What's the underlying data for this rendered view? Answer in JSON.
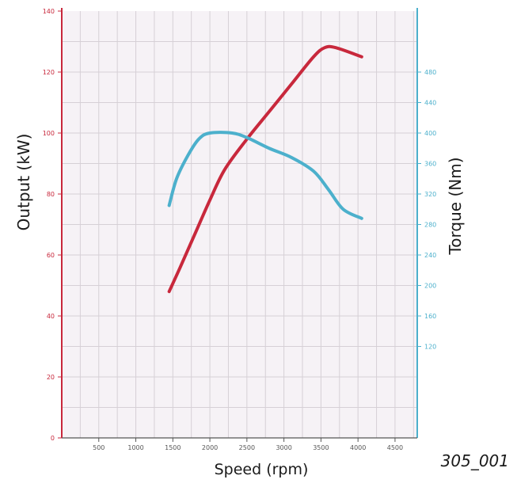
{
  "chart_data": {
    "type": "line",
    "xlabel": "Speed (rpm)",
    "ylabel_left": "Output (kW)",
    "ylabel_right": "Torque (Nm)",
    "figure_ref": "305_001",
    "xlim": [
      0,
      4800
    ],
    "x_ticks": [
      500,
      1000,
      1500,
      2000,
      2500,
      3000,
      3500,
      4000,
      4500
    ],
    "y_left_lim": [
      0,
      140
    ],
    "y_left_ticks": [
      0,
      20,
      40,
      60,
      80,
      100,
      120,
      140
    ],
    "y_right_lim": [
      0,
      560
    ],
    "y_right_ticks": [
      120,
      160,
      200,
      240,
      280,
      320,
      360,
      400,
      440,
      480
    ],
    "grid": true,
    "colors": {
      "output": "#c8283c",
      "torque": "#4cb0cc",
      "left_axis": "#c8283c",
      "right_axis": "#4cb0cc",
      "grid": "#d6d0d6",
      "plot_bg": "#f6f2f6"
    },
    "series": [
      {
        "key": "output",
        "axis": "left",
        "x": [
          1450,
          1600,
          1800,
          2000,
          2200,
          2500,
          2800,
          3100,
          3400,
          3550,
          3700,
          4050
        ],
        "y": [
          48,
          56,
          67,
          78,
          88,
          98,
          107,
          116,
          125,
          128,
          128,
          125
        ]
      },
      {
        "key": "torque",
        "axis": "right",
        "x": [
          1450,
          1550,
          1700,
          1850,
          2000,
          2300,
          2500,
          2800,
          3100,
          3400,
          3600,
          3800,
          4050
        ],
        "y": [
          305,
          340,
          370,
          392,
          400,
          400,
          394,
          380,
          368,
          350,
          326,
          300,
          288
        ]
      }
    ]
  }
}
